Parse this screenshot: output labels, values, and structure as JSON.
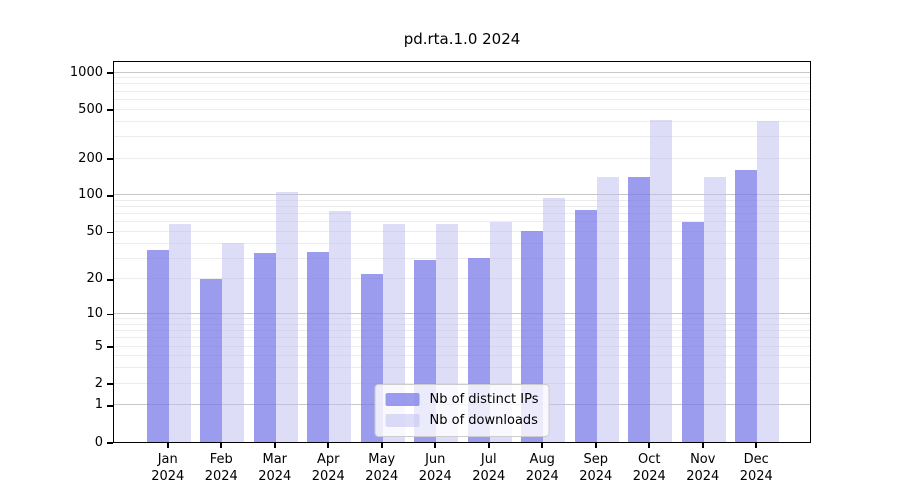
{
  "title": "pd.rta.1.0 2024",
  "chart_data": {
    "type": "bar",
    "title": "pd.rta.1.0 2024",
    "xlabel": "",
    "ylabel": "",
    "y_scale": "log10(1+y)",
    "ylim": [
      0,
      1000
    ],
    "grid": "on",
    "legend_position": "lower center",
    "categories": [
      "Jan",
      "Feb",
      "Mar",
      "Apr",
      "May",
      "Jun",
      "Jul",
      "Aug",
      "Sep",
      "Oct",
      "Nov",
      "Dec"
    ],
    "year": "2024",
    "series": [
      {
        "name": "Nb of distinct IPs",
        "color": "rgba(118,118,231,0.72)",
        "values": [
          35,
          20,
          33,
          34,
          22,
          29,
          30,
          50,
          75,
          140,
          60,
          160
        ]
      },
      {
        "name": "Nb of downloads",
        "color": "rgba(187,187,240,0.5)",
        "values": [
          58,
          40,
          105,
          74,
          58,
          58,
          60,
          95,
          140,
          405,
          140,
          400
        ]
      }
    ],
    "y_ticks": [
      0,
      1,
      2,
      5,
      10,
      20,
      50,
      100,
      200,
      500,
      1000
    ],
    "grid_major": [
      1,
      10,
      100,
      1000
    ],
    "grid_minor": [
      2,
      3,
      4,
      5,
      6,
      7,
      8,
      9,
      20,
      30,
      40,
      50,
      60,
      70,
      80,
      90,
      200,
      300,
      400,
      500,
      600,
      700,
      800,
      900
    ]
  }
}
